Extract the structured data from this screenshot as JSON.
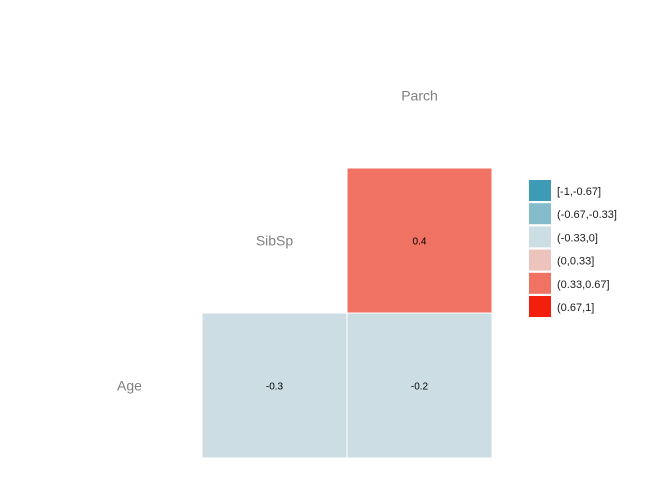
{
  "chart_data": {
    "type": "heatmap",
    "variables": [
      "Age",
      "SibSp",
      "Parch"
    ],
    "cells": [
      {
        "row": "SibSp",
        "col": "Parch",
        "value": 0.4,
        "label": "0.4",
        "bin": 4
      },
      {
        "row": "Age",
        "col": "SibSp",
        "value": -0.3,
        "label": "-0.3",
        "bin": 2
      },
      {
        "row": "Age",
        "col": "Parch",
        "value": -0.2,
        "label": "-0.2",
        "bin": 2
      }
    ],
    "legend": {
      "placement": "right",
      "bins": [
        {
          "label": "[-1,-0.67]",
          "color": "#3e9bb5"
        },
        {
          "label": "(-0.67,-0.33]",
          "color": "#84bccb"
        },
        {
          "label": "(-0.33,0]",
          "color": "#ccdee3"
        },
        {
          "label": "(0,0.33]",
          "color": "#edc3be"
        },
        {
          "label": "(0.33,0.67]",
          "color": "#ef7262"
        },
        {
          "label": "(0.67,1]",
          "color": "#f21f0c"
        }
      ]
    },
    "grid": false
  }
}
